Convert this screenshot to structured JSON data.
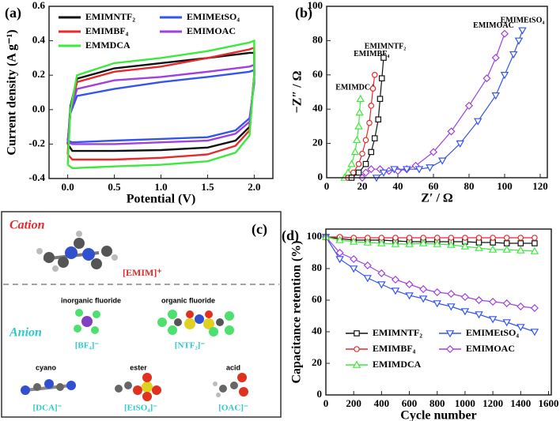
{
  "chart_data": [
    {
      "type": "line",
      "panel_label": "(a)",
      "xlabel": "Potential (V)",
      "ylabel": "Current density (A g⁻¹)",
      "xlim": [
        -0.2,
        2.2
      ],
      "ylim": [
        -0.4,
        0.6
      ],
      "xticks": [
        {
          "value": 0,
          "label": "0.0"
        },
        0.5,
        {
          "value": 1,
          "label": "1.0"
        },
        1.5,
        {
          "value": 2,
          "label": "2.0"
        }
      ],
      "yticks": [
        -0.4,
        -0.2,
        {
          "value": 0,
          "label": "0.0"
        },
        0.2,
        0.4,
        0.6
      ],
      "legend": "upper",
      "series": [
        {
          "name": "EMIMNTF₂",
          "color": "#111111",
          "x": [
            0,
            0.03,
            0.1,
            0.5,
            1,
            1.5,
            1.95,
            2,
            2,
            1.95,
            1.8,
            1.5,
            1,
            0.5,
            0.05,
            0
          ],
          "values": [
            -0.2,
            0.02,
            0.18,
            0.24,
            0.27,
            0.3,
            0.33,
            0.33,
            0.2,
            -0.1,
            -0.18,
            -0.22,
            -0.235,
            -0.24,
            -0.24,
            -0.2
          ]
        },
        {
          "name": "EMIMEtSO₄",
          "color": "#3355ee",
          "x": [
            0,
            0.03,
            0.1,
            0.5,
            1,
            1.5,
            1.95,
            2,
            2,
            1.95,
            1.8,
            1.5,
            1,
            0.5,
            0.05,
            0
          ],
          "values": [
            -0.18,
            -0.02,
            0.08,
            0.12,
            0.16,
            0.19,
            0.22,
            0.23,
            0.15,
            -0.05,
            -0.12,
            -0.16,
            -0.17,
            -0.18,
            -0.19,
            -0.18
          ]
        },
        {
          "name": "EMIMBF₄",
          "color": "#e8282b",
          "x": [
            0,
            0.03,
            0.1,
            0.5,
            1,
            1.5,
            1.95,
            2,
            2,
            1.95,
            1.8,
            1.5,
            1,
            0.5,
            0.05,
            0
          ],
          "values": [
            -0.26,
            0.0,
            0.16,
            0.22,
            0.25,
            0.3,
            0.35,
            0.36,
            0.2,
            -0.12,
            -0.21,
            -0.26,
            -0.28,
            -0.29,
            -0.29,
            -0.26
          ]
        },
        {
          "name": "EMIMOAC",
          "color": "#a040e0",
          "x": [
            0,
            0.03,
            0.1,
            0.5,
            1,
            1.5,
            1.95,
            2,
            2,
            1.95,
            1.8,
            1.5,
            1,
            0.5,
            0.05,
            0
          ],
          "values": [
            -0.19,
            -0.01,
            0.12,
            0.17,
            0.19,
            0.22,
            0.25,
            0.26,
            0.17,
            -0.07,
            -0.14,
            -0.18,
            -0.19,
            -0.2,
            -0.2,
            -0.19
          ]
        },
        {
          "name": "EMMDCA",
          "color": "#3ee83e",
          "x": [
            0,
            0.03,
            0.1,
            0.5,
            1,
            1.5,
            1.95,
            2,
            2,
            1.95,
            1.8,
            1.5,
            1,
            0.5,
            0.05,
            0
          ],
          "values": [
            -0.32,
            0.0,
            0.2,
            0.27,
            0.3,
            0.34,
            0.39,
            0.4,
            0.2,
            -0.15,
            -0.25,
            -0.3,
            -0.32,
            -0.33,
            -0.34,
            -0.32
          ]
        }
      ]
    },
    {
      "type": "line",
      "panel_label": "(b)",
      "xlabel": "Z′ / Ω",
      "ylabel": "−Z″ / Ω",
      "xlim": [
        0,
        124
      ],
      "ylim": [
        0,
        100
      ],
      "xticks": [
        0,
        20,
        40,
        60,
        80,
        100,
        120
      ],
      "yticks": [
        0,
        20,
        40,
        60,
        80,
        100
      ],
      "legend": "labels",
      "series": [
        {
          "name": "EMIMDCA",
          "color": "#3ee83e",
          "marker": "triangle",
          "x": [
            10,
            12,
            14,
            16,
            17,
            18,
            18.5,
            19
          ],
          "values": [
            0,
            3,
            8,
            15,
            22,
            30,
            38,
            46
          ]
        },
        {
          "name": "EMIMBF₄",
          "color": "#e8282b",
          "marker": "circle",
          "x": [
            12,
            15,
            18,
            20,
            22,
            24,
            25,
            26,
            27
          ],
          "values": [
            0,
            3,
            8,
            14,
            22,
            32,
            42,
            52,
            60
          ]
        },
        {
          "name": "EMIMNTF₂",
          "color": "#111111",
          "marker": "square",
          "x": [
            14,
            18,
            22,
            25,
            27,
            29,
            30,
            31,
            32
          ],
          "values": [
            0,
            3,
            8,
            15,
            23,
            34,
            46,
            58,
            70
          ]
        },
        {
          "name": "EMIMOAC",
          "color": "#a040e0",
          "marker": "diamond",
          "x": [
            20,
            22,
            25,
            30,
            35,
            40,
            45,
            50,
            60,
            70,
            80,
            90,
            95,
            100
          ],
          "values": [
            0,
            3,
            5,
            5,
            4,
            4,
            5,
            7,
            15,
            27,
            42,
            58,
            70,
            84
          ]
        },
        {
          "name": "EMIMEtSO₄",
          "color": "#3355ee",
          "marker": "triangle-down",
          "x": [
            28,
            32,
            38,
            45,
            52,
            58,
            65,
            75,
            85,
            95,
            100,
            105,
            108,
            110
          ],
          "values": [
            0,
            3,
            5,
            5,
            5,
            6,
            10,
            20,
            33,
            48,
            60,
            72,
            80,
            86
          ]
        }
      ]
    },
    {
      "type": "line",
      "panel_label": "(d)",
      "xlabel": "Cycle number",
      "ylabel": "Capacitance retention (%)",
      "xlim": [
        0,
        1620
      ],
      "ylim": [
        0,
        105
      ],
      "xticks": [
        0,
        200,
        400,
        600,
        800,
        1000,
        1200,
        1400,
        1600
      ],
      "yticks": [
        0,
        20,
        40,
        60,
        80,
        100
      ],
      "legend": "lower left",
      "x": [
        0,
        100,
        200,
        300,
        400,
        500,
        600,
        700,
        800,
        900,
        1000,
        1100,
        1200,
        1300,
        1400,
        1500
      ],
      "series": [
        {
          "name": "EMIMNTF₂",
          "color": "#111111",
          "marker": "square",
          "values": [
            100,
            99,
            98,
            98,
            98,
            97.5,
            97,
            97,
            97,
            97,
            97,
            96.5,
            96.5,
            96,
            96,
            96
          ]
        },
        {
          "name": "EMIMEtSO₄",
          "color": "#3355ee",
          "marker": "triangle-down",
          "values": [
            100,
            86,
            80,
            74,
            70,
            66,
            63,
            61,
            58,
            56,
            53,
            51,
            48,
            46,
            43,
            40
          ]
        },
        {
          "name": "EMIMBF₄",
          "color": "#e8282b",
          "marker": "circle",
          "values": [
            100,
            100,
            99.5,
            99.5,
            99.5,
            99.5,
            99.5,
            99.5,
            99.5,
            99.5,
            99.5,
            99.5,
            99.5,
            99.5,
            99.5,
            99.5
          ]
        },
        {
          "name": "EMIMOAC",
          "color": "#a040e0",
          "marker": "diamond",
          "values": [
            100,
            90,
            86,
            82,
            77,
            73,
            70,
            67,
            65,
            64,
            62,
            60,
            59,
            58,
            56,
            55
          ]
        },
        {
          "name": "EMIMDCA",
          "color": "#3ee83e",
          "marker": "triangle",
          "values": [
            100,
            98,
            97,
            96.5,
            96,
            95.5,
            95.5,
            96,
            95.5,
            95,
            94,
            93,
            92,
            92,
            91.5,
            91
          ]
        }
      ]
    }
  ],
  "panel_c": {
    "label": "(c)",
    "cation": "Cation",
    "cation_name": "[EMIM]⁺",
    "anion": "Anion",
    "groups": [
      {
        "class": "inorganic fluoride",
        "ion": "[BF₄]⁻"
      },
      {
        "class": "organic fluoride",
        "ion": "[NTF₂]⁻"
      },
      {
        "class": "cyano",
        "ion": "[DCA]⁻"
      },
      {
        "class": "ester",
        "ion": "[EtSO₄]⁻"
      },
      {
        "class": "acid",
        "ion": "[OAC]⁻"
      }
    ]
  }
}
